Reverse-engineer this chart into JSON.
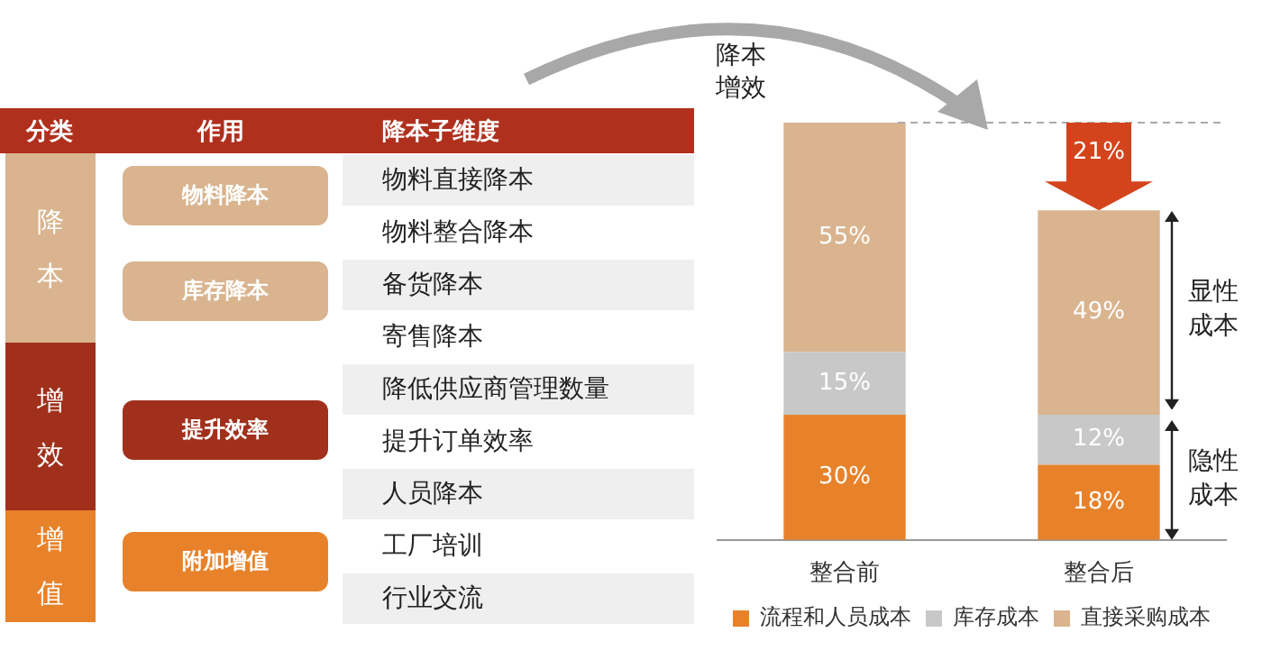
{
  "chart_data": [
    {
      "type": "other",
      "annotations": [
        "分类",
        "作用",
        "降本子维度",
        "降本",
        "增效",
        "增值",
        "物料降本",
        "库存降本",
        "提升效率",
        "附加增值",
        "物料直接降本",
        "物料整合降本",
        "备货降本",
        "寄售降本",
        "降低供应商管理数量",
        "提升订单效率",
        "人员降本",
        "工厂培训",
        "行业交流"
      ]
    },
    {
      "type": "bar",
      "stacked": true,
      "ylabel": "降本增效",
      "categories": [
        "整合前",
        "整合后"
      ],
      "series": [
        {
          "name": "流程和人员成本",
          "color": "#e8822a",
          "values": [
            30,
            18
          ],
          "value_labels": [
            "30%",
            "18%"
          ]
        },
        {
          "name": "库存成本",
          "color": "#c8c8c8",
          "values": [
            15,
            12
          ],
          "value_labels": [
            "15%",
            "12%"
          ]
        },
        {
          "name": "直接采购成本",
          "color": "#d9b48f",
          "values": [
            55,
            49
          ],
          "value_labels": [
            "55%",
            "49%"
          ]
        }
      ],
      "ref_lines": [
        {
          "axis": "y",
          "value": 100,
          "color": "#aaaaaa",
          "line_style": "dashed"
        }
      ],
      "annotations": [
        "21%",
        "显性成本",
        "隐性成本"
      ],
      "legend": "bottom"
    }
  ]
}
